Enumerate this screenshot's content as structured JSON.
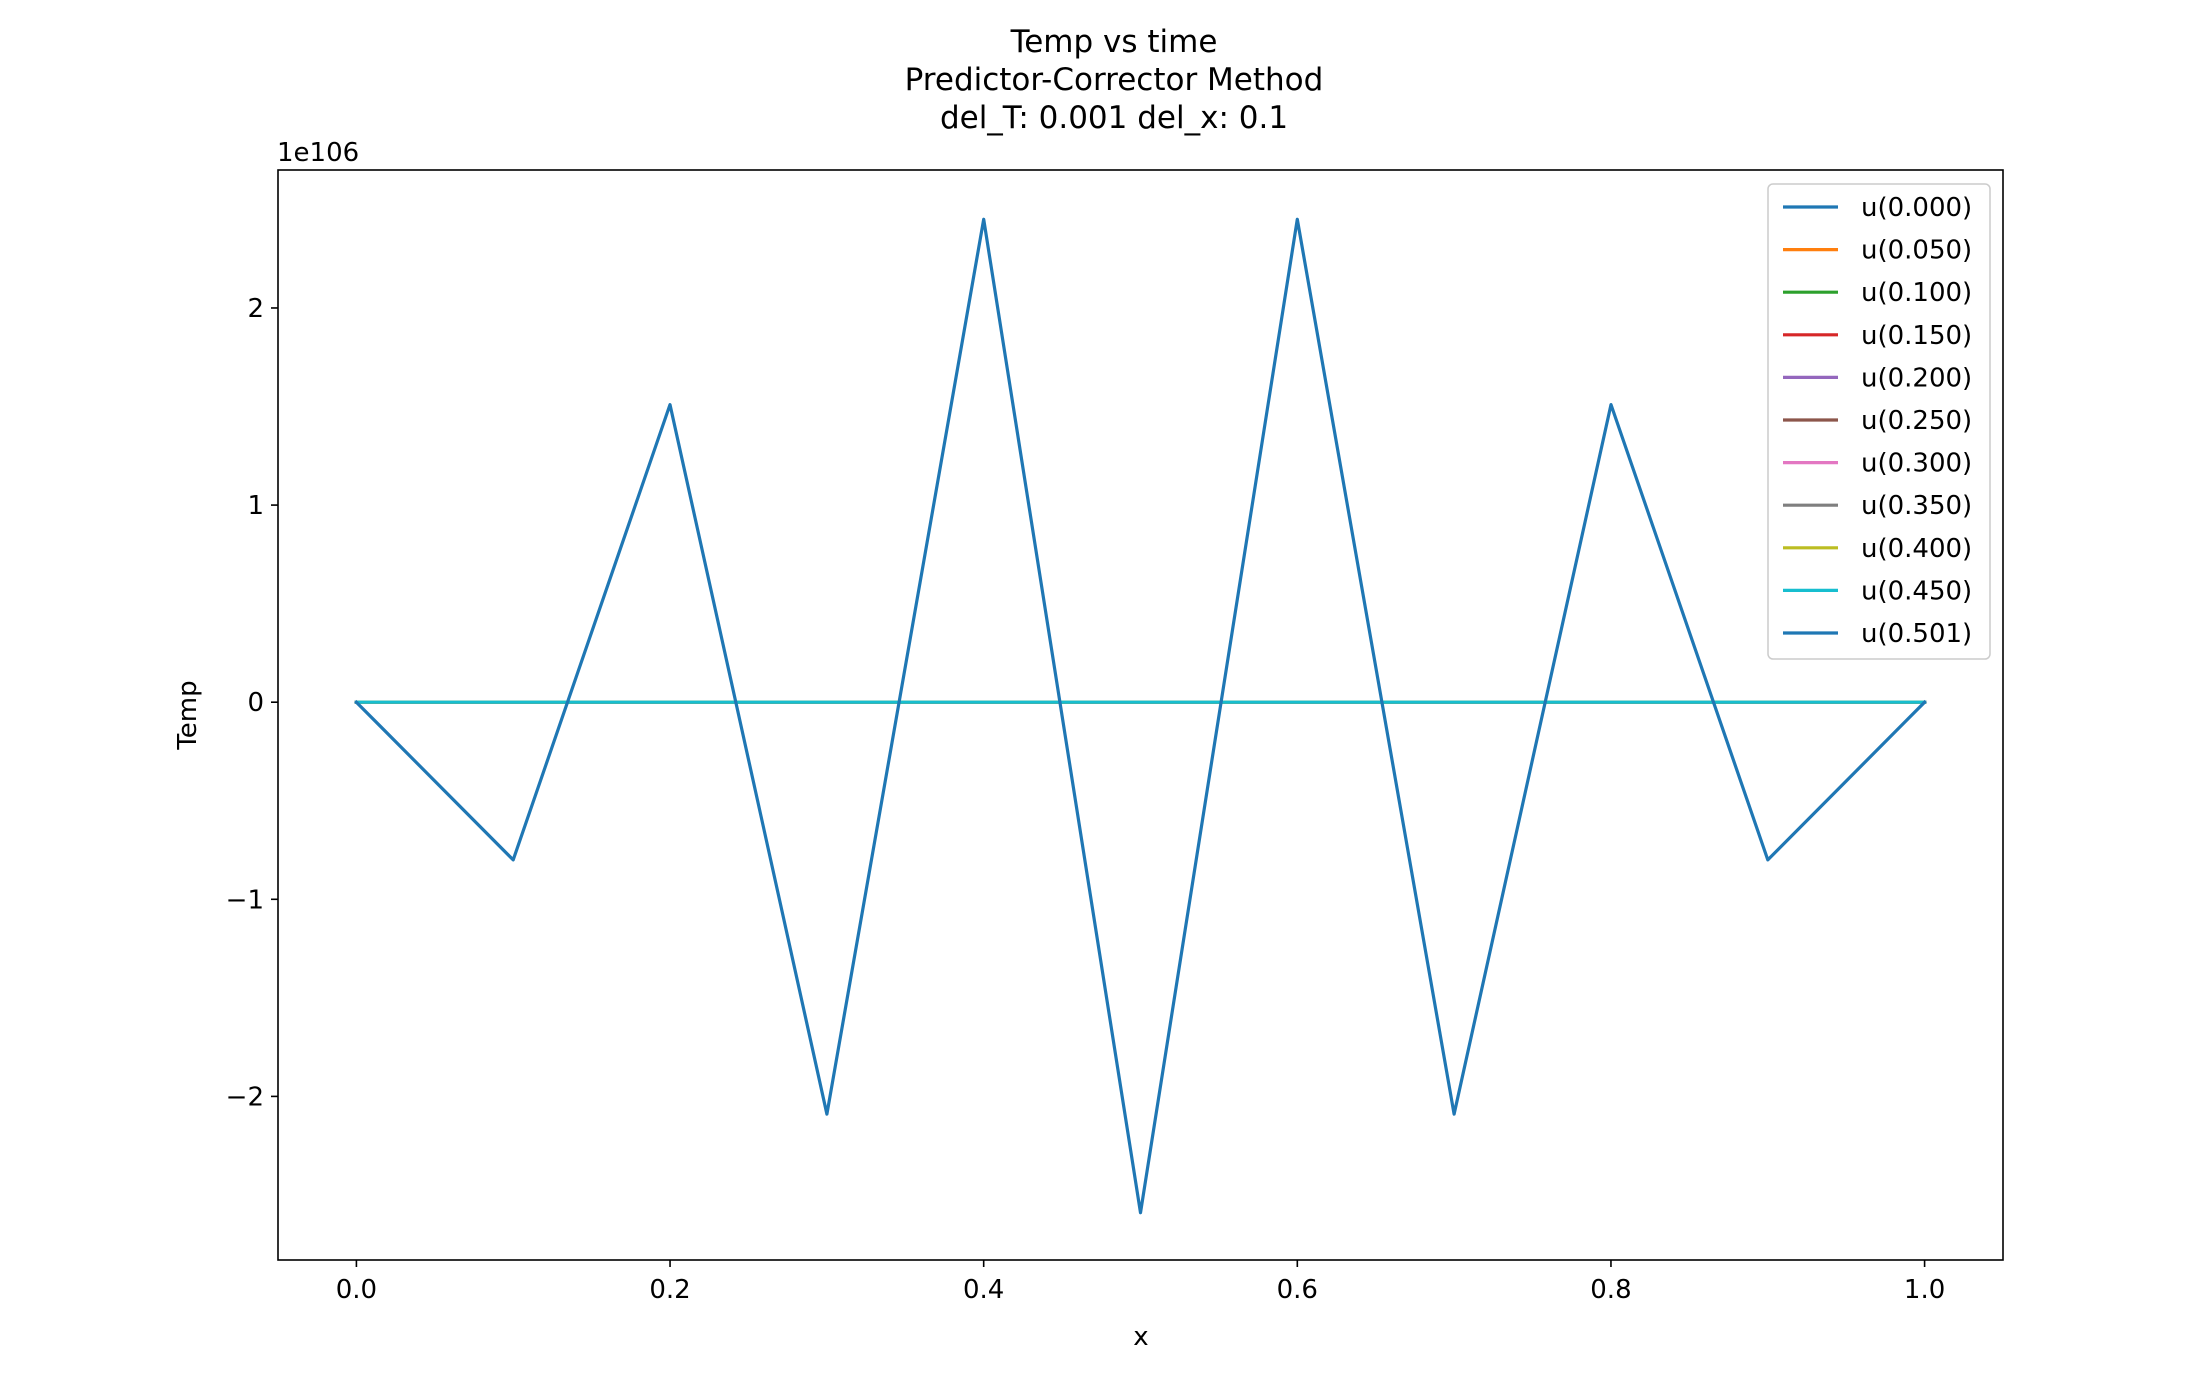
{
  "chart_data": {
    "type": "line",
    "title_lines": [
      "Temp vs time",
      "Predictor-Corrector Method",
      "del_T: 0.001 del_x: 0.1"
    ],
    "xlabel": "x",
    "ylabel": "Temp",
    "y_offset_label": "1e106",
    "xlim": [
      -0.05,
      1.05
    ],
    "ylim": [
      -2.83,
      2.7
    ],
    "x_ticks": [
      0.0,
      0.2,
      0.4,
      0.6,
      0.8,
      1.0
    ],
    "x_tick_labels": [
      "0.0",
      "0.2",
      "0.4",
      "0.6",
      "0.8",
      "1.0"
    ],
    "y_ticks": [
      -2,
      -1,
      0,
      1,
      2
    ],
    "y_tick_labels": [
      "−2",
      "−1",
      "0",
      "1",
      "2"
    ],
    "grid": false,
    "legend_position": "top-right",
    "x": [
      0.0,
      0.1,
      0.2,
      0.3,
      0.4,
      0.5,
      0.6,
      0.7,
      0.8,
      0.9,
      1.0
    ],
    "series": [
      {
        "name": "u(0.000)",
        "color": "#1f77b4",
        "values": [
          0,
          0,
          0,
          0,
          0,
          0,
          0,
          0,
          0,
          0,
          0
        ]
      },
      {
        "name": "u(0.050)",
        "color": "#ff7f0e",
        "values": [
          0,
          0,
          0,
          0,
          0,
          0,
          0,
          0,
          0,
          0,
          0
        ]
      },
      {
        "name": "u(0.100)",
        "color": "#2ca02c",
        "values": [
          0,
          0,
          0,
          0,
          0,
          0,
          0,
          0,
          0,
          0,
          0
        ]
      },
      {
        "name": "u(0.150)",
        "color": "#d62728",
        "values": [
          0,
          0,
          0,
          0,
          0,
          0,
          0,
          0,
          0,
          0,
          0
        ]
      },
      {
        "name": "u(0.200)",
        "color": "#9467bd",
        "values": [
          0,
          0,
          0,
          0,
          0,
          0,
          0,
          0,
          0,
          0,
          0
        ]
      },
      {
        "name": "u(0.250)",
        "color": "#8c564b",
        "values": [
          0,
          0,
          0,
          0,
          0,
          0,
          0,
          0,
          0,
          0,
          0
        ]
      },
      {
        "name": "u(0.300)",
        "color": "#e377c2",
        "values": [
          0,
          0,
          0,
          0,
          0,
          0,
          0,
          0,
          0,
          0,
          0
        ]
      },
      {
        "name": "u(0.350)",
        "color": "#7f7f7f",
        "values": [
          0,
          0,
          0,
          0,
          0,
          0,
          0,
          0,
          0,
          0,
          0
        ]
      },
      {
        "name": "u(0.400)",
        "color": "#bcbd22",
        "values": [
          0,
          0,
          0,
          0,
          0,
          0,
          0,
          0,
          0,
          0,
          0
        ]
      },
      {
        "name": "u(0.450)",
        "color": "#17becf",
        "values": [
          0,
          0,
          0,
          0,
          0,
          0,
          0,
          0,
          0,
          0,
          0
        ]
      },
      {
        "name": "u(0.501)",
        "color": "#1f77b4",
        "values": [
          0,
          -0.8,
          1.51,
          -2.09,
          2.45,
          -2.59,
          2.45,
          -2.09,
          1.51,
          -0.8,
          0
        ]
      }
    ]
  }
}
